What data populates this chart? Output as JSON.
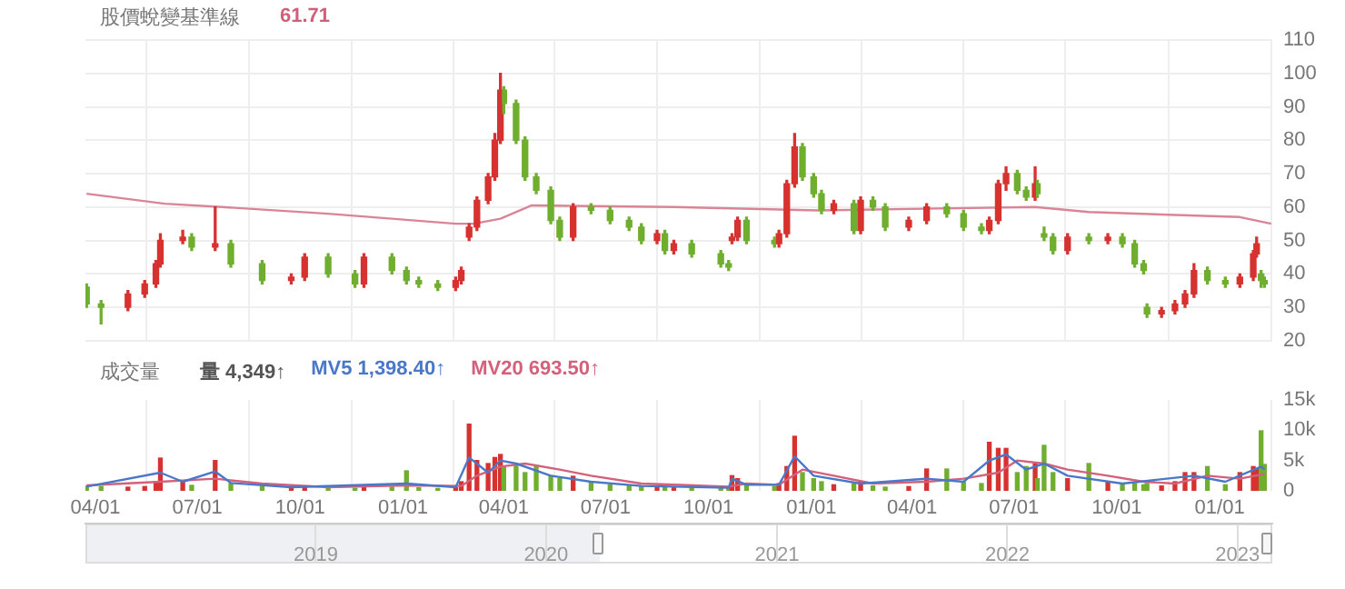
{
  "chart_data": [
    {
      "type": "candlestick",
      "title": "股價蛻變基準線",
      "annotations": [
        "61.71"
      ],
      "x": [
        "2020-03-24",
        "2020-04-06",
        "2020-04-30",
        "2020-05-15",
        "2020-05-25",
        "2020-05-29",
        "2020-06-18",
        "2020-06-26",
        "2020-07-17",
        "2020-07-31",
        "2020-08-28",
        "2020-09-23",
        "2020-10-05",
        "2020-10-26",
        "2020-11-19",
        "2020-11-27",
        "2020-12-22",
        "2021-01-04",
        "2021-01-15",
        "2021-02-01",
        "2021-02-17",
        "2021-02-22",
        "2021-03-01",
        "2021-03-08",
        "2021-03-18",
        "2021-03-24",
        "2021-03-29",
        "2021-04-01",
        "2021-04-12",
        "2021-04-20",
        "2021-04-30",
        "2021-05-13",
        "2021-05-21",
        "2021-06-02",
        "2021-06-18",
        "2021-07-05",
        "2021-07-22",
        "2021-08-02",
        "2021-08-16",
        "2021-08-23",
        "2021-08-31",
        "2021-09-16",
        "2021-10-12",
        "2021-10-19",
        "2021-10-22",
        "2021-10-27",
        "2021-11-04",
        "2021-11-29",
        "2021-12-03",
        "2021-12-10",
        "2021-12-17",
        "2021-12-24",
        "2022-01-03",
        "2022-01-10",
        "2022-01-21",
        "2022-02-08",
        "2022-02-14",
        "2022-02-25",
        "2022-03-08",
        "2022-03-29",
        "2022-04-14",
        "2022-05-02",
        "2022-05-17",
        "2022-06-02",
        "2022-06-09",
        "2022-06-17",
        "2022-06-24",
        "2022-07-04",
        "2022-07-12",
        "2022-07-20",
        "2022-07-22",
        "2022-07-28",
        "2022-08-05",
        "2022-08-18",
        "2022-09-06",
        "2022-09-23",
        "2022-10-06",
        "2022-10-17",
        "2022-10-25",
        "2022-10-28",
        "2022-11-10",
        "2022-11-22",
        "2022-12-01",
        "2022-12-09",
        "2022-12-21",
        "2023-01-06",
        "2023-01-19",
        "2023-01-31",
        "2023-02-03",
        "2023-02-07",
        "2023-02-10"
      ],
      "ohlc": [
        [
          36,
          37,
          30,
          31
        ],
        [
          31,
          32,
          25,
          30
        ],
        [
          30,
          35,
          29,
          34
        ],
        [
          34,
          38,
          33,
          37
        ],
        [
          37,
          44,
          36,
          43
        ],
        [
          43,
          52,
          42,
          50
        ],
        [
          50,
          53,
          49,
          51
        ],
        [
          51,
          52,
          47,
          48
        ],
        [
          48,
          60,
          47,
          49
        ],
        [
          49,
          50,
          42,
          43
        ],
        [
          43,
          44,
          37,
          38
        ],
        [
          38,
          40,
          37,
          39
        ],
        [
          39,
          46,
          38,
          45
        ],
        [
          45,
          46,
          39,
          40
        ],
        [
          40,
          41,
          36,
          37
        ],
        [
          37,
          46,
          36,
          45
        ],
        [
          45,
          46,
          40,
          41
        ],
        [
          41,
          42,
          37,
          38
        ],
        [
          38,
          39,
          36,
          37
        ],
        [
          37,
          38,
          35,
          36
        ],
        [
          36,
          39,
          35,
          38
        ],
        [
          38,
          42,
          37,
          41
        ],
        [
          51,
          55,
          50,
          54
        ],
        [
          54,
          63,
          53,
          62
        ],
        [
          62,
          70,
          61,
          69
        ],
        [
          69,
          82,
          68,
          80
        ],
        [
          80,
          100,
          79,
          95
        ],
        [
          95,
          96,
          88,
          91
        ],
        [
          91,
          92,
          79,
          80
        ],
        [
          80,
          81,
          68,
          69
        ],
        [
          69,
          70,
          64,
          65
        ],
        [
          65,
          66,
          55,
          56
        ],
        [
          56,
          57,
          50,
          51
        ],
        [
          51,
          61,
          50,
          60
        ],
        [
          60,
          61,
          58,
          59
        ],
        [
          59,
          60,
          55,
          56
        ],
        [
          56,
          57,
          53,
          54
        ],
        [
          54,
          55,
          49,
          50
        ],
        [
          50,
          53,
          49,
          52
        ],
        [
          52,
          53,
          46,
          47
        ],
        [
          47,
          50,
          46,
          49
        ],
        [
          49,
          50,
          45,
          46
        ],
        [
          46,
          47,
          42,
          43
        ],
        [
          43,
          44,
          41,
          42
        ],
        [
          50,
          52,
          49,
          51
        ],
        [
          51,
          57,
          50,
          56
        ],
        [
          56,
          57,
          49,
          50
        ],
        [
          50,
          51,
          48,
          49
        ],
        [
          49,
          53,
          48,
          52
        ],
        [
          52,
          68,
          51,
          67
        ],
        [
          67,
          82,
          66,
          78
        ],
        [
          78,
          79,
          68,
          69
        ],
        [
          69,
          70,
          63,
          64
        ],
        [
          64,
          65,
          58,
          59
        ],
        [
          59,
          62,
          58,
          61
        ],
        [
          61,
          62,
          52,
          53
        ],
        [
          53,
          63,
          52,
          62
        ],
        [
          62,
          63,
          59,
          60
        ],
        [
          60,
          61,
          53,
          54
        ],
        [
          54,
          57,
          53,
          56
        ],
        [
          56,
          61,
          55,
          60
        ],
        [
          60,
          61,
          57,
          58
        ],
        [
          58,
          59,
          53,
          54
        ],
        [
          54,
          55,
          52,
          53
        ],
        [
          53,
          57,
          52,
          56
        ],
        [
          56,
          68,
          55,
          67
        ],
        [
          67,
          72,
          65,
          70
        ],
        [
          70,
          71,
          64,
          65
        ],
        [
          65,
          66,
          62,
          63
        ],
        [
          63,
          72,
          62,
          67
        ],
        [
          67,
          68,
          63,
          64
        ],
        [
          52,
          54,
          50,
          51
        ],
        [
          51,
          52,
          46,
          47
        ],
        [
          47,
          52,
          46,
          51
        ],
        [
          51,
          52,
          49,
          50
        ],
        [
          50,
          52,
          49,
          51
        ],
        [
          51,
          52,
          48,
          49
        ],
        [
          49,
          50,
          42,
          43
        ],
        [
          43,
          44,
          40,
          41
        ],
        [
          30,
          31,
          27,
          28
        ],
        [
          28,
          30,
          27,
          29
        ],
        [
          29,
          32,
          28,
          31
        ],
        [
          31,
          35,
          30,
          34
        ],
        [
          34,
          43,
          33,
          41
        ],
        [
          41,
          42,
          37,
          38
        ],
        [
          38,
          39,
          36,
          37
        ],
        [
          37,
          40,
          36,
          39
        ],
        [
          39,
          47,
          38,
          46
        ],
        [
          46,
          51,
          45,
          49
        ],
        [
          40,
          41,
          36,
          38
        ],
        [
          38,
          39,
          36,
          37
        ]
      ],
      "colors": [
        "#6fae2e",
        "#6fae2e",
        "#d6322f",
        "#d6322f",
        "#d6322f",
        "#d6322f",
        "#d6322f",
        "#6fae2e",
        "#d6322f",
        "#6fae2e",
        "#6fae2e",
        "#d6322f",
        "#d6322f",
        "#6fae2e",
        "#6fae2e",
        "#d6322f",
        "#6fae2e",
        "#6fae2e",
        "#6fae2e",
        "#6fae2e",
        "#d6322f",
        "#d6322f",
        "#d6322f",
        "#d6322f",
        "#d6322f",
        "#d6322f",
        "#d6322f",
        "#6fae2e",
        "#6fae2e",
        "#6fae2e",
        "#6fae2e",
        "#6fae2e",
        "#6fae2e",
        "#d6322f",
        "#6fae2e",
        "#6fae2e",
        "#6fae2e",
        "#6fae2e",
        "#d6322f",
        "#6fae2e",
        "#d6322f",
        "#6fae2e",
        "#6fae2e",
        "#6fae2e",
        "#d6322f",
        "#d6322f",
        "#6fae2e",
        "#6fae2e",
        "#d6322f",
        "#d6322f",
        "#d6322f",
        "#6fae2e",
        "#6fae2e",
        "#6fae2e",
        "#d6322f",
        "#6fae2e",
        "#d6322f",
        "#6fae2e",
        "#6fae2e",
        "#d6322f",
        "#d6322f",
        "#6fae2e",
        "#6fae2e",
        "#6fae2e",
        "#d6322f",
        "#d6322f",
        "#d6322f",
        "#6fae2e",
        "#6fae2e",
        "#d6322f",
        "#6fae2e",
        "#6fae2e",
        "#6fae2e",
        "#d6322f",
        "#6fae2e",
        "#d6322f",
        "#6fae2e",
        "#6fae2e",
        "#6fae2e",
        "#6fae2e",
        "#d6322f",
        "#d6322f",
        "#d6322f",
        "#d6322f",
        "#6fae2e",
        "#6fae2e",
        "#d6322f",
        "#d6322f",
        "#d6322f",
        "#6fae2e",
        "#6fae2e"
      ],
      "series": [
        {
          "type": "line",
          "color": "#d98597",
          "x": [
            "2020-03-24",
            "2020-06-02",
            "2020-07-23",
            "2020-10-26",
            "2021-02-17",
            "2021-03-05",
            "2021-03-29",
            "2021-04-26",
            "2021-08-31",
            "2022-01-07",
            "2022-07-20",
            "2022-09-06",
            "2023-01-19",
            "2023-02-16"
          ],
          "values": [
            64,
            61,
            60,
            58,
            55,
            55,
            56.5,
            60.5,
            60,
            59,
            60,
            58.5,
            57,
            55
          ]
        }
      ],
      "xlim": [
        "2020-03-23",
        "2023-02-17"
      ],
      "xticks": [
        {
          "value": "2020-04-01",
          "label": null
        },
        {
          "value": "2020-07-01",
          "label": null
        },
        {
          "value": "2020-10-01",
          "label": null
        },
        {
          "value": "2021-01-01",
          "label": null
        },
        {
          "value": "2021-04-01",
          "label": null
        },
        {
          "value": "2021-07-01",
          "label": null
        },
        {
          "value": "2021-10-01",
          "label": null
        },
        {
          "value": "2022-01-01",
          "label": null
        },
        {
          "value": "2022-04-01",
          "label": null
        },
        {
          "value": "2022-07-01",
          "label": null
        },
        {
          "value": "2022-10-01",
          "label": null
        },
        {
          "value": "2023-01-01",
          "label": null
        }
      ],
      "ylim": [
        20,
        110
      ],
      "yticks": [
        20,
        30,
        40,
        50,
        60,
        70,
        80,
        90,
        100,
        110
      ],
      "grid": true,
      "tick_labels": "y"
    },
    {
      "type": "bar",
      "title": "成交量",
      "legend": "top left",
      "series": [
        {
          "name": "量 4,349↑",
          "x": [
            "2020-03-24",
            "2020-04-06",
            "2020-04-30",
            "2020-05-15",
            "2020-05-25",
            "2020-05-29",
            "2020-06-18",
            "2020-06-26",
            "2020-07-17",
            "2020-07-31",
            "2020-08-28",
            "2020-09-23",
            "2020-10-05",
            "2020-10-26",
            "2020-11-19",
            "2020-11-27",
            "2020-12-22",
            "2021-01-04",
            "2021-01-15",
            "2021-02-01",
            "2021-02-17",
            "2021-02-22",
            "2021-03-01",
            "2021-03-08",
            "2021-03-18",
            "2021-03-24",
            "2021-03-29",
            "2021-04-01",
            "2021-04-12",
            "2021-04-20",
            "2021-04-30",
            "2021-05-13",
            "2021-05-21",
            "2021-06-02",
            "2021-06-18",
            "2021-07-05",
            "2021-07-22",
            "2021-08-02",
            "2021-08-16",
            "2021-08-23",
            "2021-08-31",
            "2021-09-16",
            "2021-10-12",
            "2021-10-19",
            "2021-10-22",
            "2021-10-27",
            "2021-11-04",
            "2021-11-29",
            "2021-12-03",
            "2021-12-10",
            "2021-12-17",
            "2021-12-24",
            "2022-01-03",
            "2022-01-10",
            "2022-01-21",
            "2022-02-08",
            "2022-02-14",
            "2022-02-25",
            "2022-03-08",
            "2022-03-29",
            "2022-04-14",
            "2022-05-02",
            "2022-05-17",
            "2022-06-02",
            "2022-06-09",
            "2022-06-17",
            "2022-06-24",
            "2022-07-04",
            "2022-07-12",
            "2022-07-20",
            "2022-07-22",
            "2022-07-28",
            "2022-08-05",
            "2022-08-18",
            "2022-09-06",
            "2022-09-23",
            "2022-10-06",
            "2022-10-17",
            "2022-10-25",
            "2022-10-28",
            "2022-11-10",
            "2022-11-22",
            "2022-12-01",
            "2022-12-09",
            "2022-12-21",
            "2023-01-06",
            "2023-01-19",
            "2023-01-31",
            "2023-02-03",
            "2023-02-07",
            "2023-02-10"
          ],
          "values": [
            800,
            700,
            600,
            700,
            1500,
            5400,
            1500,
            900,
            5000,
            1200,
            700,
            500,
            600,
            500,
            400,
            800,
            600,
            3300,
            500,
            400,
            500,
            1500,
            11000,
            5000,
            4500,
            5500,
            6000,
            4000,
            4500,
            3000,
            4000,
            2500,
            2000,
            2400,
            1500,
            1000,
            800,
            700,
            600,
            600,
            500,
            500,
            400,
            400,
            2500,
            2000,
            1000,
            700,
            1200,
            4000,
            9000,
            3000,
            2000,
            1500,
            1000,
            1200,
            1500,
            800,
            600,
            700,
            3600,
            3600,
            1500,
            1200,
            8000,
            7000,
            7000,
            3000,
            4000,
            4500,
            2000,
            7500,
            3000,
            2000,
            4500,
            1500,
            1000,
            1200,
            1000,
            1200,
            800,
            1500,
            3000,
            3000,
            4000,
            1000,
            3000,
            4000,
            3500,
            9900,
            4349
          ],
          "colors": [
            "#6fae2e",
            "#6fae2e",
            "#d6322f",
            "#d6322f",
            "#d6322f",
            "#d6322f",
            "#d6322f",
            "#6fae2e",
            "#d6322f",
            "#6fae2e",
            "#6fae2e",
            "#d6322f",
            "#d6322f",
            "#6fae2e",
            "#6fae2e",
            "#d6322f",
            "#6fae2e",
            "#6fae2e",
            "#6fae2e",
            "#6fae2e",
            "#d6322f",
            "#d6322f",
            "#d6322f",
            "#d6322f",
            "#d6322f",
            "#d6322f",
            "#d6322f",
            "#6fae2e",
            "#6fae2e",
            "#6fae2e",
            "#6fae2e",
            "#6fae2e",
            "#6fae2e",
            "#d6322f",
            "#6fae2e",
            "#6fae2e",
            "#6fae2e",
            "#6fae2e",
            "#d6322f",
            "#6fae2e",
            "#d6322f",
            "#6fae2e",
            "#6fae2e",
            "#6fae2e",
            "#d6322f",
            "#d6322f",
            "#6fae2e",
            "#6fae2e",
            "#d6322f",
            "#d6322f",
            "#d6322f",
            "#6fae2e",
            "#6fae2e",
            "#6fae2e",
            "#d6322f",
            "#6fae2e",
            "#d6322f",
            "#6fae2e",
            "#6fae2e",
            "#d6322f",
            "#d6322f",
            "#6fae2e",
            "#6fae2e",
            "#6fae2e",
            "#d6322f",
            "#d6322f",
            "#d6322f",
            "#6fae2e",
            "#6fae2e",
            "#d6322f",
            "#6fae2e",
            "#6fae2e",
            "#6fae2e",
            "#d6322f",
            "#6fae2e",
            "#d6322f",
            "#6fae2e",
            "#6fae2e",
            "#6fae2e",
            "#6fae2e",
            "#d6322f",
            "#d6322f",
            "#d6322f",
            "#d6322f",
            "#6fae2e",
            "#6fae2e",
            "#d6322f",
            "#d6322f",
            "#d6322f",
            "#6fae2e",
            "#6fae2e"
          ]
        },
        {
          "name": "MV5 1,398.40↑",
          "type": "line",
          "color": "#4a78c9",
          "x": [
            "2020-03-24",
            "2020-05-29",
            "2020-06-18",
            "2020-07-17",
            "2020-07-31",
            "2020-09-23",
            "2021-01-04",
            "2021-02-17",
            "2021-03-01",
            "2021-03-18",
            "2021-03-29",
            "2021-04-12",
            "2021-05-13",
            "2021-06-18",
            "2021-08-02",
            "2021-10-19",
            "2021-10-22",
            "2021-11-04",
            "2021-12-03",
            "2021-12-17",
            "2022-01-03",
            "2022-02-14",
            "2022-04-14",
            "2022-05-17",
            "2022-06-09",
            "2022-06-24",
            "2022-07-12",
            "2022-07-28",
            "2022-08-18",
            "2022-10-06",
            "2022-12-09",
            "2023-01-06",
            "2023-02-07",
            "2023-02-10"
          ],
          "values": [
            700,
            3000,
            1500,
            3200,
            1300,
            600,
            1200,
            600,
            5500,
            3000,
            5000,
            4500,
            2500,
            1500,
            800,
            500,
            2000,
            1000,
            1000,
            5700,
            2500,
            1200,
            2000,
            1500,
            5000,
            6000,
            3500,
            4500,
            2500,
            1200,
            2500,
            1500,
            4000,
            3500
          ]
        },
        {
          "name": "MV20 693.50↑",
          "type": "line",
          "color": "#d4607b",
          "x": [
            "2020-03-24",
            "2020-05-29",
            "2020-07-17",
            "2020-08-28",
            "2020-10-26",
            "2021-01-04",
            "2021-02-22",
            "2021-03-08",
            "2021-03-29",
            "2021-04-20",
            "2021-05-21",
            "2021-06-18",
            "2021-08-02",
            "2021-10-19",
            "2021-11-04",
            "2021-12-03",
            "2021-12-24",
            "2022-01-21",
            "2022-02-25",
            "2022-04-14",
            "2022-05-17",
            "2022-06-17",
            "2022-07-04",
            "2022-07-28",
            "2022-08-18",
            "2022-09-23",
            "2022-10-25",
            "2022-11-22",
            "2022-12-21",
            "2023-01-19",
            "2023-02-10"
          ],
          "values": [
            900,
            1500,
            2000,
            1200,
            600,
            900,
            800,
            2500,
            4000,
            4500,
            3500,
            2500,
            1200,
            700,
            1200,
            1000,
            3500,
            2500,
            1200,
            1500,
            2000,
            3000,
            5000,
            4500,
            3500,
            2500,
            1500,
            1200,
            2500,
            2000,
            2800
          ]
        }
      ],
      "xlim": [
        "2020-03-23",
        "2023-02-17"
      ],
      "xticks": [
        {
          "value": "2020-04-01",
          "label": "04/01"
        },
        {
          "value": "2020-07-01",
          "label": "07/01"
        },
        {
          "value": "2020-10-01",
          "label": "10/01"
        },
        {
          "value": "2021-01-01",
          "label": "01/01"
        },
        {
          "value": "2021-04-01",
          "label": "04/01"
        },
        {
          "value": "2021-07-01",
          "label": "07/01"
        },
        {
          "value": "2021-10-01",
          "label": "10/01"
        },
        {
          "value": "2022-01-01",
          "label": "01/01"
        },
        {
          "value": "2022-04-01",
          "label": "04/01"
        },
        {
          "value": "2022-07-01",
          "label": "07/01"
        },
        {
          "value": "2022-10-01",
          "label": "10/01"
        },
        {
          "value": "2023-01-01",
          "label": "01/01"
        }
      ],
      "ylim": [
        0,
        15000
      ],
      "yticks": [
        0,
        {
          "value": 5000,
          "label": "5k"
        },
        {
          "value": 10000,
          "label": "10k"
        },
        {
          "value": 15000,
          "label": "15k"
        }
      ],
      "x2lim": [
        "2018-01-01",
        "2023-02-25"
      ],
      "x2ticks": [
        {
          "value": "2019-01-01",
          "label": "2019"
        },
        {
          "value": "2020-01-01",
          "label": "2020"
        },
        {
          "value": "2021-01-01",
          "label": "2021"
        },
        {
          "value": "2022-01-01",
          "label": "2022"
        },
        {
          "value": "2023-01-01",
          "label": "2023"
        }
      ],
      "grid": "x"
    }
  ]
}
